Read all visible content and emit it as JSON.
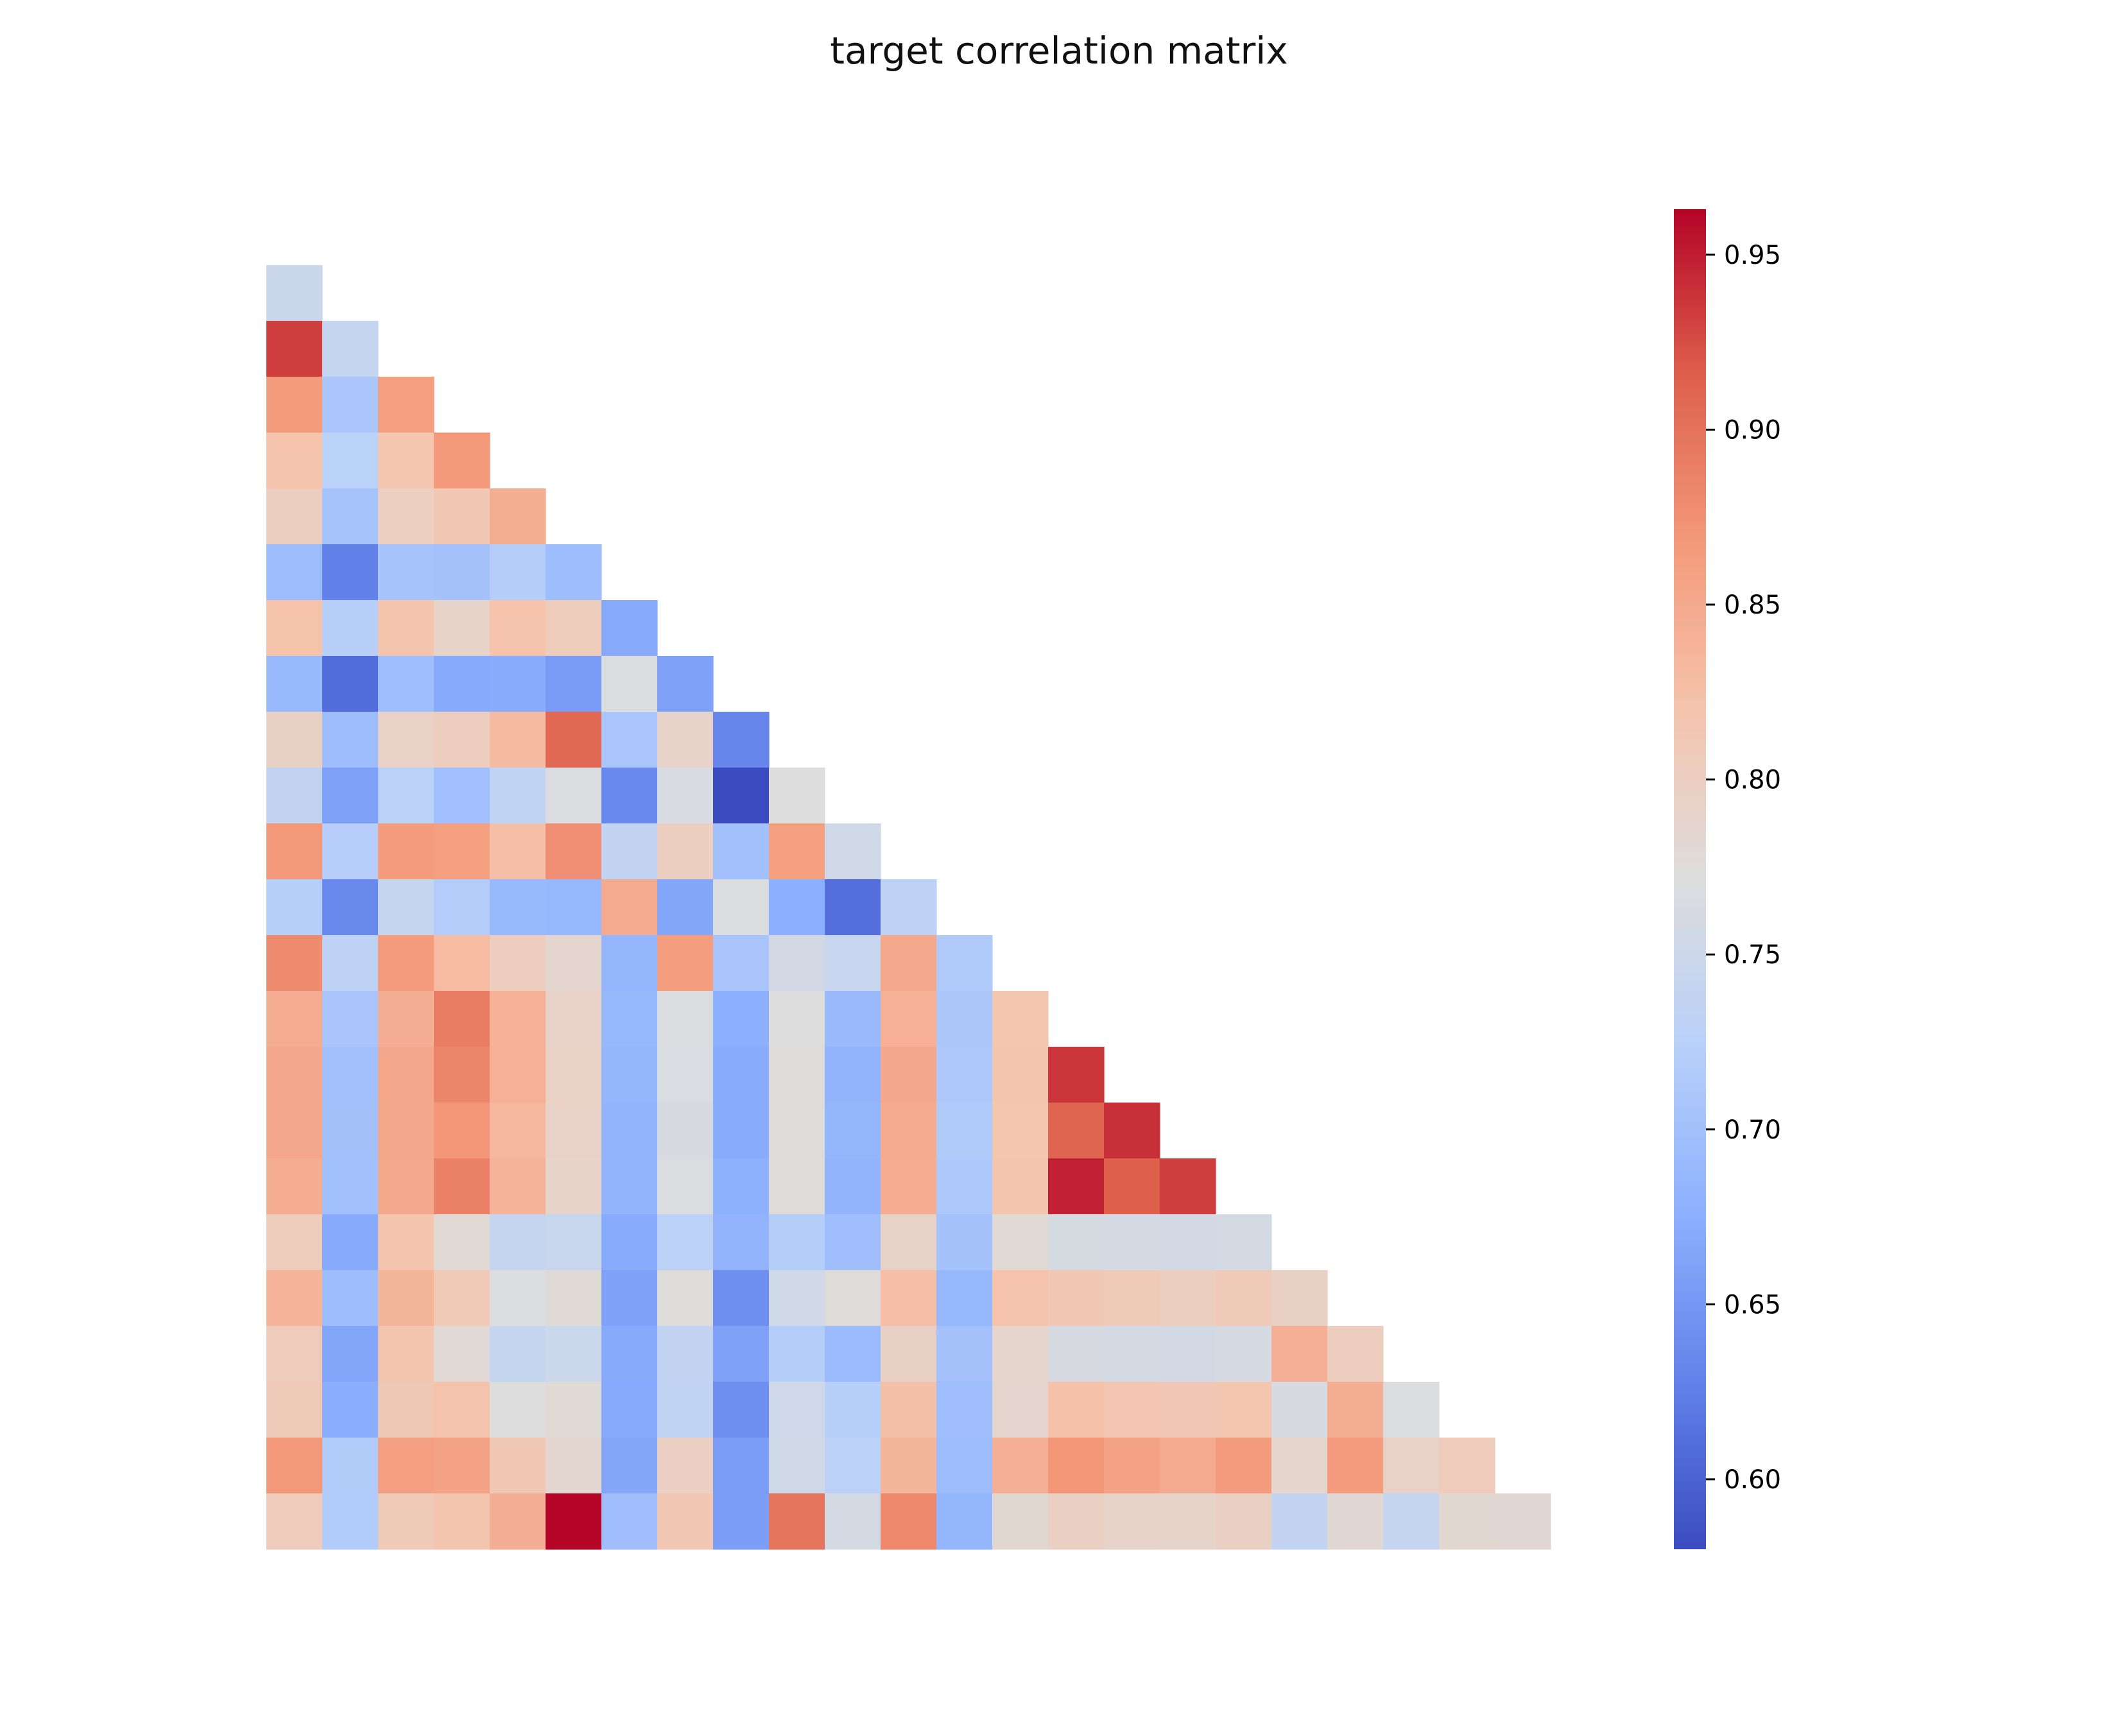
{
  "chart_data": {
    "type": "heatmap",
    "title": "target correlation matrix",
    "xlabel": "",
    "ylabel": "",
    "mask": "upper-triangle",
    "size": 24,
    "rows": [
      [
        0.746
      ],
      [
        0.933,
        0.741
      ],
      [
        0.866,
        0.708,
        0.862
      ],
      [
        0.821,
        0.726,
        0.817,
        0.869
      ],
      [
        0.8,
        0.704,
        0.799,
        0.812,
        0.845
      ],
      [
        0.693,
        0.628,
        0.704,
        0.701,
        0.72,
        0.695
      ],
      [
        0.822,
        0.724,
        0.819,
        0.79,
        0.821,
        0.805,
        0.668
      ],
      [
        0.689,
        0.61,
        0.696,
        0.67,
        0.672,
        0.654,
        0.77,
        0.66
      ],
      [
        0.796,
        0.693,
        0.795,
        0.803,
        0.83,
        0.908,
        0.708,
        0.791,
        0.632
      ],
      [
        0.736,
        0.659,
        0.727,
        0.698,
        0.733,
        0.768,
        0.635,
        0.765,
        0.58,
        0.771
      ],
      [
        0.869,
        0.721,
        0.865,
        0.862,
        0.826,
        0.876,
        0.736,
        0.8,
        0.699,
        0.862,
        0.754
      ],
      [
        0.723,
        0.636,
        0.742,
        0.718,
        0.689,
        0.687,
        0.847,
        0.666,
        0.769,
        0.675,
        0.611,
        0.73
      ],
      [
        0.88,
        0.73,
        0.865,
        0.829,
        0.802,
        0.786,
        0.685,
        0.863,
        0.707,
        0.757,
        0.743,
        0.85,
        0.715
      ],
      [
        0.846,
        0.707,
        0.844,
        0.891,
        0.84,
        0.794,
        0.688,
        0.767,
        0.676,
        0.771,
        0.69,
        0.842,
        0.71,
        0.816
      ],
      [
        0.853,
        0.699,
        0.853,
        0.884,
        0.841,
        0.795,
        0.685,
        0.766,
        0.672,
        0.773,
        0.682,
        0.852,
        0.712,
        0.818,
        0.937
      ],
      [
        0.852,
        0.7,
        0.852,
        0.87,
        0.833,
        0.794,
        0.682,
        0.764,
        0.672,
        0.774,
        0.684,
        0.848,
        0.715,
        0.816,
        0.911,
        0.94
      ],
      [
        0.846,
        0.699,
        0.85,
        0.887,
        0.838,
        0.79,
        0.683,
        0.767,
        0.677,
        0.775,
        0.682,
        0.846,
        0.711,
        0.818,
        0.948,
        0.915,
        0.933
      ],
      [
        0.805,
        0.67,
        0.819,
        0.78,
        0.74,
        0.744,
        0.671,
        0.728,
        0.682,
        0.719,
        0.697,
        0.792,
        0.703,
        0.78,
        0.763,
        0.76,
        0.757,
        0.759
      ],
      [
        0.838,
        0.695,
        0.837,
        0.809,
        0.77,
        0.777,
        0.66,
        0.774,
        0.641,
        0.755,
        0.776,
        0.825,
        0.688,
        0.82,
        0.812,
        0.807,
        0.8,
        0.808,
        0.796
      ],
      [
        0.806,
        0.665,
        0.818,
        0.779,
        0.742,
        0.748,
        0.669,
        0.737,
        0.66,
        0.719,
        0.692,
        0.796,
        0.701,
        0.787,
        0.764,
        0.76,
        0.757,
        0.762,
        0.843,
        0.802
      ],
      [
        0.808,
        0.673,
        0.81,
        0.821,
        0.771,
        0.778,
        0.668,
        0.734,
        0.641,
        0.753,
        0.723,
        0.824,
        0.697,
        0.785,
        0.823,
        0.815,
        0.811,
        0.816,
        0.764,
        0.845,
        0.768
      ],
      [
        0.869,
        0.717,
        0.861,
        0.858,
        0.812,
        0.784,
        0.666,
        0.798,
        0.656,
        0.754,
        0.728,
        0.837,
        0.694,
        0.843,
        0.87,
        0.858,
        0.849,
        0.865,
        0.787,
        0.865,
        0.794,
        0.806
      ],
      [
        0.806,
        0.716,
        0.807,
        0.818,
        0.844,
        0.962,
        0.697,
        0.813,
        0.657,
        0.899,
        0.759,
        0.881,
        0.684,
        0.782,
        0.797,
        0.791,
        0.789,
        0.797,
        0.737,
        0.781,
        0.74,
        0.782,
        0.781
      ]
    ],
    "colorbar": {
      "min": 0.58,
      "max": 0.963,
      "ticks": [
        0.6,
        0.65,
        0.7,
        0.75,
        0.8,
        0.85,
        0.9,
        0.95
      ],
      "tick_labels": [
        "0.60",
        "0.65",
        "0.70",
        "0.75",
        "0.80",
        "0.85",
        "0.90",
        "0.95"
      ],
      "colormap": "coolwarm"
    },
    "x_tick_labels": [],
    "y_tick_labels": [],
    "grid": false
  }
}
